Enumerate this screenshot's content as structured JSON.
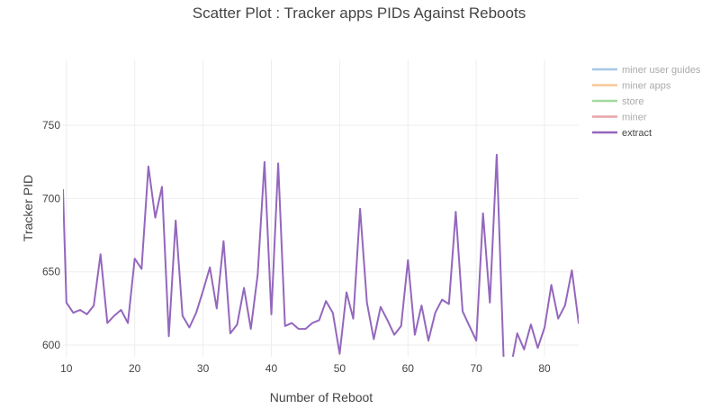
{
  "chart_data": {
    "type": "line",
    "title": "Scatter Plot : Tracker apps PIDs Against Reboots",
    "xlabel": "Number of Reboot",
    "ylabel": "Tracker PID",
    "xlim": [
      9.5,
      85
    ],
    "ylim": [
      592,
      795
    ],
    "x_ticks": [
      10,
      20,
      30,
      40,
      50,
      60,
      70,
      80
    ],
    "y_ticks": [
      600,
      650,
      700,
      750
    ],
    "grid": true,
    "legend_position": "right-top",
    "series": [
      {
        "name": "miner user guides",
        "color": "#a6c8e6",
        "visible": false,
        "x": [],
        "y": []
      },
      {
        "name": "miner apps",
        "color": "#f8c896",
        "visible": false,
        "x": [],
        "y": []
      },
      {
        "name": "store",
        "color": "#a3d9a0",
        "visible": false,
        "x": [],
        "y": []
      },
      {
        "name": "miner",
        "color": "#e8a3a5",
        "visible": false,
        "x": [],
        "y": []
      },
      {
        "name": "extract",
        "color": "#9467bd",
        "visible": true,
        "x": [
          9.5,
          10,
          11,
          12,
          13,
          14,
          15,
          16,
          17,
          18,
          19,
          20,
          21,
          22,
          23,
          24,
          25,
          26,
          27,
          28,
          29,
          30,
          31,
          32,
          33,
          34,
          35,
          36,
          37,
          38,
          39,
          40,
          41,
          42,
          43,
          44,
          45,
          46,
          47,
          48,
          49,
          50,
          51,
          52,
          53,
          54,
          55,
          56,
          57,
          58,
          59,
          60,
          61,
          62,
          63,
          64,
          65,
          66,
          67,
          68,
          69,
          70,
          71,
          72,
          73,
          74,
          75,
          76,
          77,
          78,
          79,
          80,
          81,
          82,
          83,
          84,
          85,
          85.5
        ],
        "y": [
          706,
          629,
          622,
          624,
          621,
          627,
          662,
          615,
          620,
          624,
          615,
          659,
          652,
          722,
          687,
          708,
          606,
          685,
          620,
          612,
          622,
          637,
          653,
          625,
          671,
          608,
          614,
          639,
          611,
          648,
          725,
          621,
          724,
          613,
          615,
          611,
          611,
          615,
          617,
          630,
          622,
          594,
          636,
          618,
          693,
          629,
          604,
          626,
          617,
          607,
          613,
          658,
          607,
          627,
          603,
          622,
          631,
          628,
          691,
          623,
          613,
          603,
          690,
          629,
          730,
          592,
          583,
          608,
          597,
          614,
          598,
          612,
          641,
          618,
          627,
          651,
          615,
          627
        ]
      }
    ]
  }
}
